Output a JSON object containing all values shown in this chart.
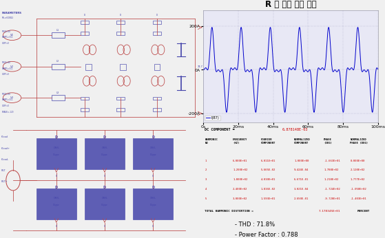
{
  "waveform_title": "R 상 입력 전류 파형",
  "x_ticks": [
    "0s",
    "20ms",
    "40ms",
    "60ms",
    "80ms",
    "100ms"
  ],
  "wave_color": "#0000cc",
  "grid_color": "#9999bb",
  "plot_bg": "#e8e8f5",
  "plot_frame_color": "#aaaacc",
  "dc_component": "6.878148E-03",
  "thd_value": "7.178345E+01",
  "thd_percent": "71.8%",
  "power_factor": "0.788",
  "table_data": [
    [
      "1",
      "6.000E+01",
      "6.011E+01",
      "1.000E+00",
      "-1.663E+01",
      "0.000E+00"
    ],
    [
      "2",
      "1.200E+02",
      "5.665E-02",
      "9.424E-04",
      "1.788E+02",
      "2.120E+02"
    ],
    [
      "3",
      "1.800E+02",
      "4.010E+01",
      "6.671E-01",
      "1.218E+02",
      "1.777E+02"
    ],
    [
      "4",
      "2.400E+02",
      "1.816E-02",
      "3.021E-04",
      "-1.724E+02",
      "-1.050E+02"
    ],
    [
      "5",
      "3.000E+02",
      "1.593E+01",
      "2.650E-01",
      "-9.720E+01",
      "-1.403E+01"
    ]
  ],
  "red_c": "#cc0000",
  "blue_c": "#3333aa",
  "main_bg": "#f0f0f0",
  "circuit_bg": "#f0f0f8",
  "ckt_line_color": "#bb4444",
  "ckt_comp_color": "#4444aa"
}
